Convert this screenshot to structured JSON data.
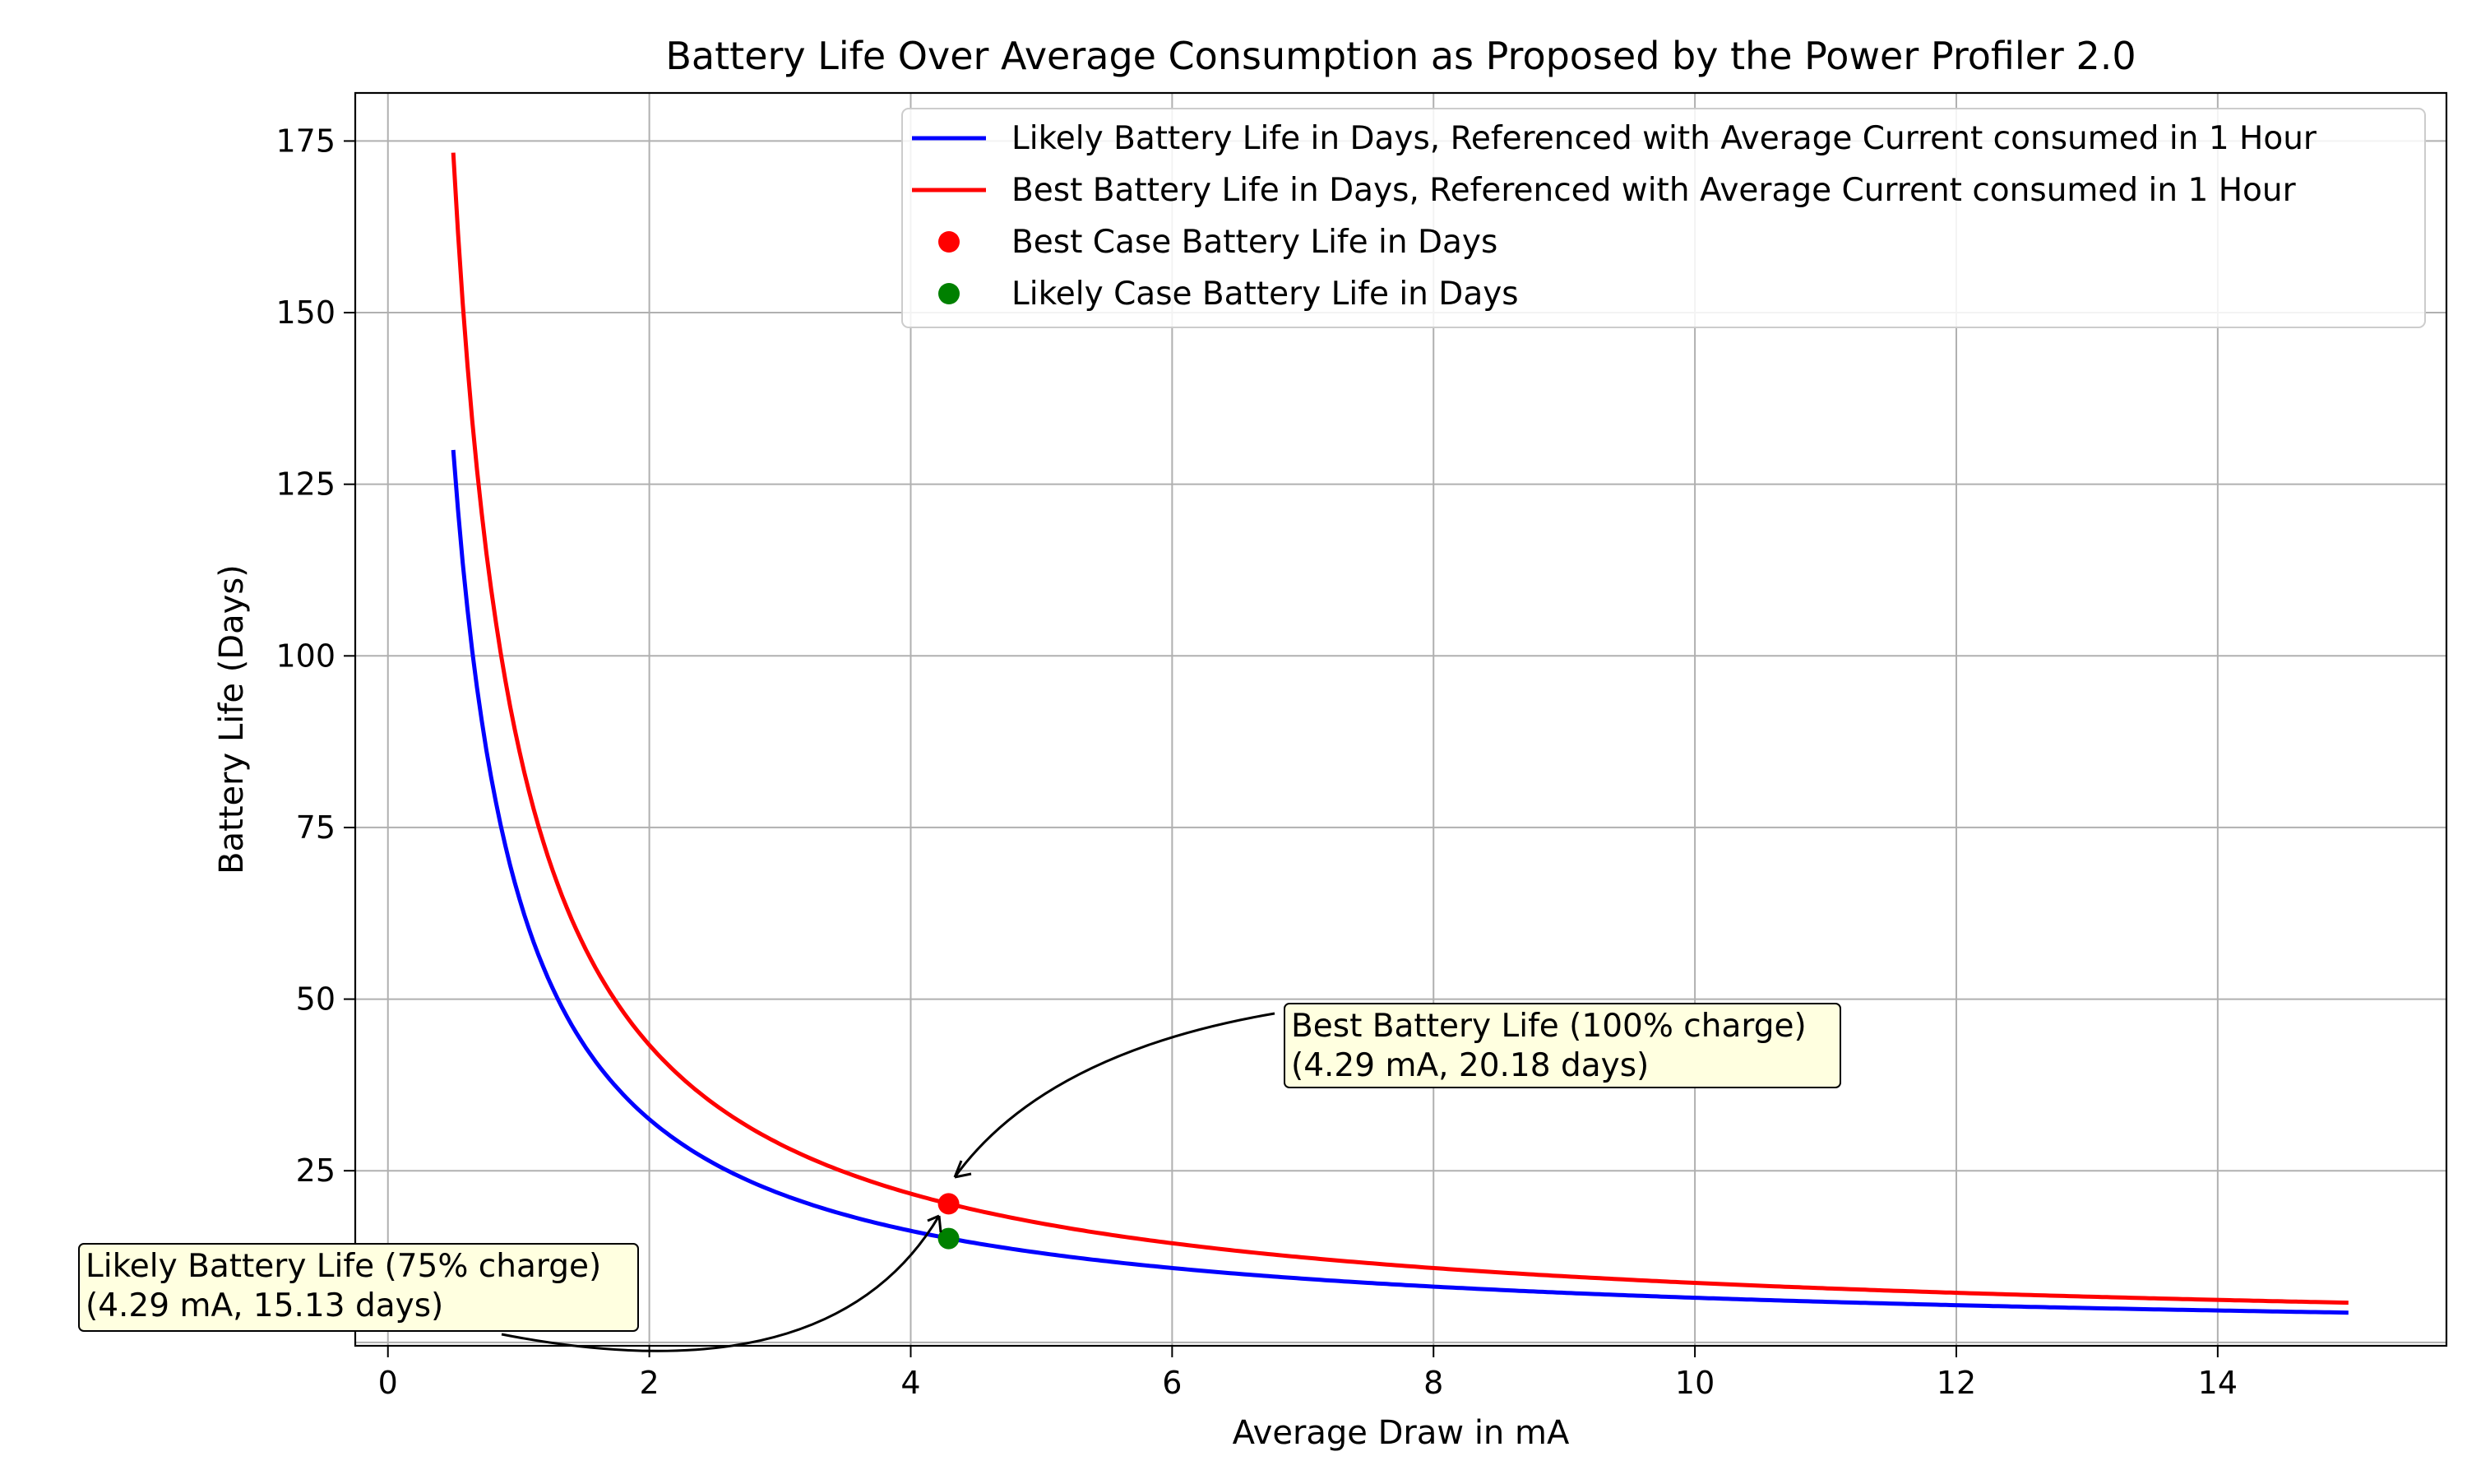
{
  "chart_data": {
    "type": "line",
    "title": "Battery Life Over Average Consumption as Proposed by the Power Profiler 2.0",
    "xlabel": "Average Draw in mA",
    "ylabel": "Battery Life (Days)",
    "xlim": [
      -0.25,
      15.75
    ],
    "ylim": [
      -0.5,
      182
    ],
    "xticks": [
      0,
      2,
      4,
      6,
      8,
      10,
      12,
      14
    ],
    "yticks": [
      25,
      50,
      75,
      100,
      125,
      150,
      175
    ],
    "grid": true,
    "legend_position": "top-right",
    "colors": {
      "likely": "#0000ff",
      "best": "#ff0000",
      "likely_point": "#008000",
      "best_point": "#ff0000",
      "annotation_bg": "#ffffe0"
    },
    "series": [
      {
        "name": "Likely Battery Life in Days, Referenced with Average Current consumed in 1 Hour",
        "color": "#0000ff",
        "x": [
          0.5,
          0.625,
          0.75,
          0.875,
          1.0,
          1.25,
          1.5,
          1.75,
          2.0,
          2.5,
          3.0,
          3.5,
          4.0,
          4.29,
          5.0,
          6.0,
          7.0,
          8.0,
          9.0,
          10.0,
          11.0,
          12.0,
          13.0,
          14.0,
          15.0
        ],
        "y": [
          130,
          104,
          86.7,
          74.3,
          65,
          52,
          43.3,
          37.1,
          32.5,
          26,
          21.7,
          18.6,
          16.25,
          15.13,
          13,
          10.8,
          9.3,
          8.1,
          7.2,
          6.5,
          5.9,
          5.4,
          5.0,
          4.6,
          4.3
        ]
      },
      {
        "name": "Best Battery Life in Days, Referenced with Average Current consumed in 1 Hour",
        "color": "#ff0000",
        "x": [
          0.5,
          0.625,
          0.75,
          0.875,
          1.0,
          1.25,
          1.5,
          1.75,
          2.0,
          2.5,
          3.0,
          3.5,
          4.0,
          4.29,
          5.0,
          6.0,
          7.0,
          8.0,
          9.0,
          10.0,
          11.0,
          12.0,
          13.0,
          14.0,
          15.0
        ],
        "y": [
          173.3,
          138.7,
          115.6,
          99.1,
          86.7,
          69.3,
          57.8,
          49.5,
          43.3,
          34.7,
          28.9,
          24.8,
          21.7,
          20.18,
          17.3,
          14.4,
          12.4,
          10.8,
          9.6,
          8.7,
          7.9,
          7.2,
          6.7,
          6.2,
          5.8
        ]
      }
    ],
    "points": [
      {
        "name": "Best Case Battery Life in Days",
        "x": 4.29,
        "y": 20.18,
        "color": "#ff0000"
      },
      {
        "name": "Likely Case Battery Life in Days",
        "x": 4.29,
        "y": 15.13,
        "color": "#008000"
      }
    ],
    "annotations": [
      {
        "lines": [
          "Best Battery Life (100% charge)",
          "(4.29 mA, 20.18 days)"
        ],
        "x": 4.29,
        "y": 20.18
      },
      {
        "lines": [
          "Likely Battery Life (75% charge)",
          "(4.29 mA, 15.13 days)"
        ],
        "x": 4.29,
        "y": 15.13
      }
    ]
  }
}
